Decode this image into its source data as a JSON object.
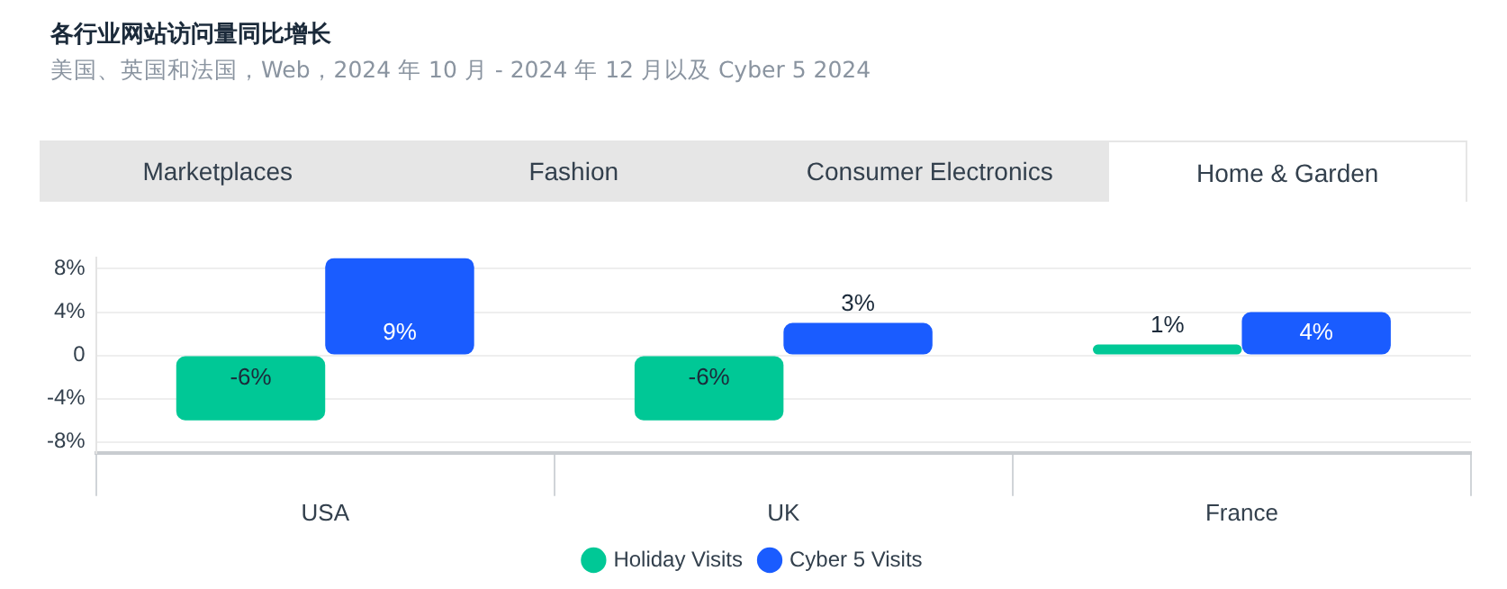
{
  "chart_data": {
    "type": "bar",
    "title": "各行业网站访问量同比增长",
    "subtitle": "美国、英国和法国，Web，2024 年 10 月 - 2024 年 12 月以及 Cyber 5 2024",
    "annotations": [
      "Marketplaces",
      "Fashion",
      "Consumer Electronics",
      "Home & Garden"
    ],
    "categories": [
      "USA",
      "UK",
      "France"
    ],
    "series": [
      {
        "name": "Holiday Visits",
        "color": "#00c896",
        "values": [
          -6,
          -6,
          1
        ]
      },
      {
        "name": "Cyber 5 Visits",
        "color": "#1a5cff",
        "values": [
          9,
          3,
          4
        ]
      }
    ],
    "ylim": [
      -9,
      9
    ],
    "yticks": [
      {
        "value": 8,
        "label": "8%"
      },
      {
        "value": 4,
        "label": "4%"
      },
      0,
      {
        "value": -4,
        "label": "-4%"
      },
      {
        "value": -8,
        "label": "-8%"
      }
    ],
    "value_labels": [
      [
        "-6%",
        "-6%",
        "1%"
      ],
      [
        "9%",
        "3%",
        "4%"
      ]
    ],
    "grid": "y",
    "legend": "bottom"
  }
}
